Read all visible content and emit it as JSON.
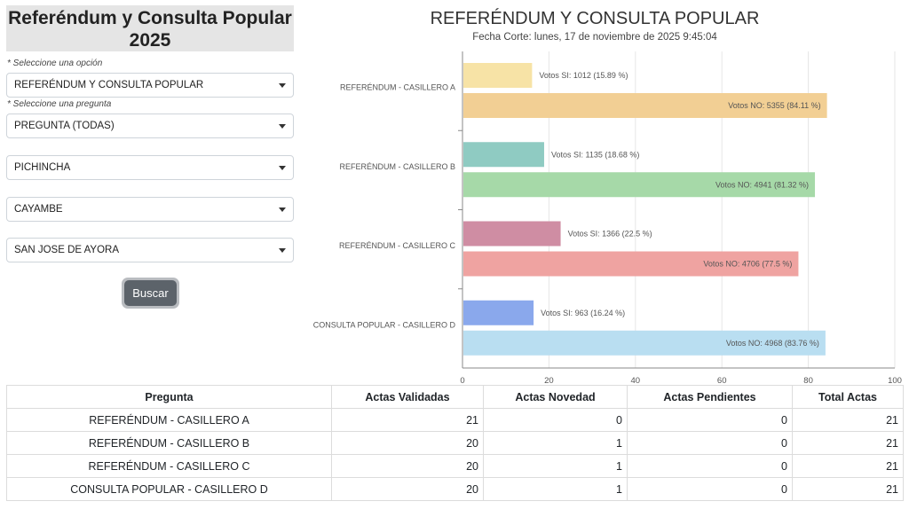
{
  "sidebar": {
    "title": "Referéndum y Consulta Popular 2025",
    "hint_option": "* Seleccione una opción",
    "hint_question": "* Seleccione una pregunta",
    "select_option": "REFERÉNDUM Y CONSULTA POPULAR",
    "select_question": "PREGUNTA (TODAS)",
    "select_province": "PICHINCHA",
    "select_canton": "CAYAMBE",
    "select_parish": "SAN JOSE DE AYORA",
    "search_label": "Buscar"
  },
  "chart_data": {
    "type": "bar",
    "orientation": "horizontal",
    "title": "REFERÉNDUM Y CONSULTA POPULAR",
    "subtitle": "Fecha Corte: lunes, 17 de noviembre de 2025 9:45:04",
    "categories": [
      "REFERÉNDUM - CASILLERO A",
      "REFERÉNDUM - CASILLERO B",
      "REFERÉNDUM - CASILLERO C",
      "CONSULTA POPULAR - CASILLERO D"
    ],
    "series": [
      {
        "values": [
          15.89,
          18.68,
          22.5,
          16.24
        ],
        "labels": [
          "Votos SI: 1012 (15.89 %)",
          "Votos SI: 1135 (18.68 %)",
          "Votos SI: 1366 (22.5 %)",
          "Votos SI: 963 (16.24 %)"
        ],
        "colors": [
          "#f7e3a6",
          "#8fcbc2",
          "#cf8da3",
          "#8aa8ec"
        ]
      },
      {
        "values": [
          84.11,
          81.32,
          77.5,
          83.76
        ],
        "labels": [
          "Votos NO: 5355 (84.11 %)",
          "Votos NO: 4941 (81.32 %)",
          "Votos NO: 4706 (77.5 %)",
          "Votos NO: 4968 (83.76 %)"
        ],
        "colors": [
          "#f2cf94",
          "#a6d9a8",
          "#efa3a1",
          "#b9def1"
        ]
      }
    ],
    "xlim": [
      0,
      100
    ],
    "xticks": [
      "0",
      "20",
      "40",
      "60",
      "80",
      "100"
    ],
    "grid": true
  },
  "table": {
    "headers": [
      "Pregunta",
      "Actas Validadas",
      "Actas Novedad",
      "Actas Pendientes",
      "Total Actas"
    ],
    "rows": [
      [
        "REFERÉNDUM - CASILLERO A",
        "21",
        "0",
        "0",
        "21"
      ],
      [
        "REFERÉNDUM - CASILLERO B",
        "20",
        "1",
        "0",
        "21"
      ],
      [
        "REFERÉNDUM - CASILLERO C",
        "20",
        "1",
        "0",
        "21"
      ],
      [
        "CONSULTA POPULAR - CASILLERO D",
        "20",
        "1",
        "0",
        "21"
      ]
    ]
  }
}
